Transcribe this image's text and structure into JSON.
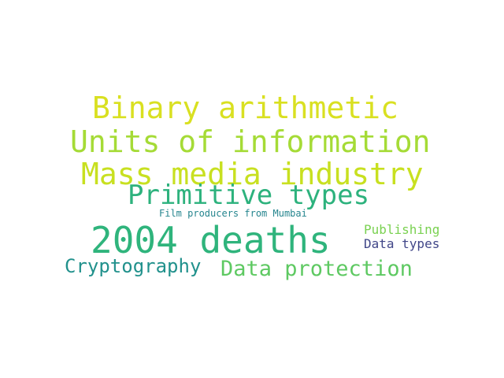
{
  "words": [
    {
      "id": "binary_arithmetic",
      "text": "Binary arithmetic",
      "color": "#d9e021"
    },
    {
      "id": "units_of_information",
      "text": "Units of information",
      "color": "#a5db36"
    },
    {
      "id": "mass_media_industry",
      "text": "Mass media industry",
      "color": "#c8e020"
    },
    {
      "id": "primitive_types",
      "text": "Primitive types",
      "color": "#2db27d"
    },
    {
      "id": "film_producers",
      "text": "Film producers from Mumbai",
      "color": "#25858e"
    },
    {
      "id": "deaths_2004",
      "text": "2004 deaths",
      "color": "#2fb47c"
    },
    {
      "id": "publishing",
      "text": "Publishing",
      "color": "#7ad151"
    },
    {
      "id": "data_types",
      "text": "Data types",
      "color": "#404688"
    },
    {
      "id": "cryptography",
      "text": "Cryptography",
      "color": "#21918c"
    },
    {
      "id": "data_protection",
      "text": "Data protection",
      "color": "#5ec962"
    }
  ]
}
